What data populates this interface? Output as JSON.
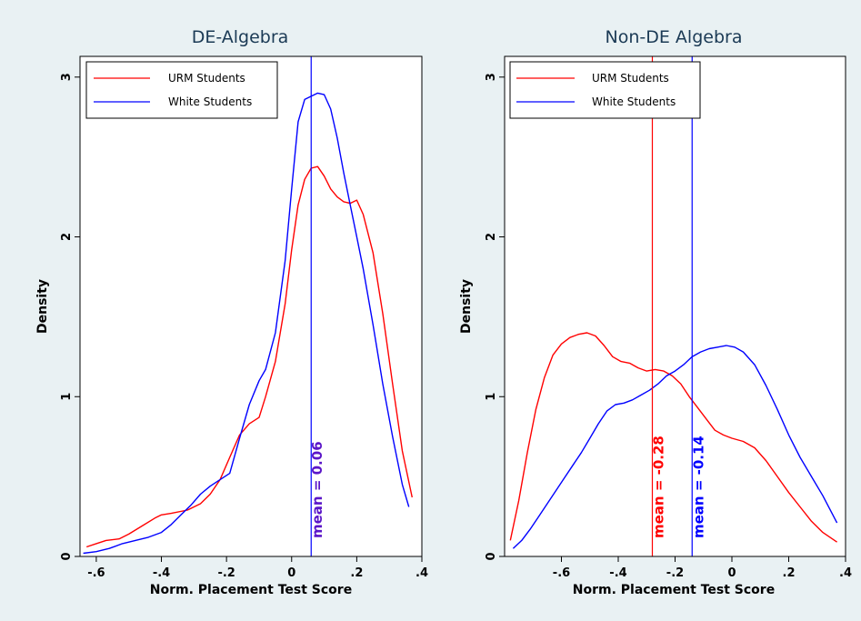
{
  "chart_data": [
    {
      "type": "line",
      "title": "DE-Algebra",
      "xlabel": "Norm. Placement Test Score",
      "ylabel": "Density",
      "xlim": [
        -0.65,
        0.4
      ],
      "ylim": [
        0,
        3.05
      ],
      "xticks": [
        -0.6,
        -0.4,
        -0.2,
        0,
        0.2,
        0.4
      ],
      "xtick_labels": [
        "-.6",
        "-.4",
        "-.2",
        "0",
        ".2",
        ".4"
      ],
      "yticks": [
        0,
        1,
        2,
        3
      ],
      "ytick_labels": [
        "0",
        "1",
        "2",
        "3"
      ],
      "grid": false,
      "legend_position": "top-left",
      "series": [
        {
          "name": "URM Students",
          "color": "#ff0000",
          "x": [
            -0.63,
            -0.6,
            -0.57,
            -0.53,
            -0.5,
            -0.46,
            -0.42,
            -0.4,
            -0.37,
            -0.32,
            -0.28,
            -0.25,
            -0.22,
            -0.19,
            -0.16,
            -0.13,
            -0.1,
            -0.08,
            -0.05,
            -0.02,
            0.0,
            0.02,
            0.04,
            0.06,
            0.08,
            0.1,
            0.12,
            0.14,
            0.16,
            0.18,
            0.2,
            0.22,
            0.25,
            0.28,
            0.31,
            0.34,
            0.37
          ],
          "y": [
            0.06,
            0.08,
            0.1,
            0.11,
            0.14,
            0.19,
            0.24,
            0.26,
            0.27,
            0.29,
            0.33,
            0.39,
            0.48,
            0.62,
            0.76,
            0.83,
            0.87,
            1.0,
            1.22,
            1.58,
            1.92,
            2.2,
            2.36,
            2.43,
            2.44,
            2.38,
            2.3,
            2.25,
            2.22,
            2.21,
            2.23,
            2.14,
            1.9,
            1.52,
            1.08,
            0.66,
            0.37
          ]
        },
        {
          "name": "White Students",
          "color": "#0000ff",
          "x": [
            -0.64,
            -0.6,
            -0.56,
            -0.52,
            -0.48,
            -0.44,
            -0.4,
            -0.37,
            -0.34,
            -0.31,
            -0.28,
            -0.25,
            -0.22,
            -0.19,
            -0.16,
            -0.13,
            -0.1,
            -0.08,
            -0.05,
            -0.02,
            0.0,
            0.02,
            0.04,
            0.06,
            0.08,
            0.1,
            0.12,
            0.14,
            0.16,
            0.18,
            0.2,
            0.22,
            0.25,
            0.28,
            0.31,
            0.34,
            0.36
          ],
          "y": [
            0.02,
            0.03,
            0.05,
            0.08,
            0.1,
            0.12,
            0.15,
            0.2,
            0.26,
            0.32,
            0.39,
            0.44,
            0.48,
            0.52,
            0.74,
            0.95,
            1.1,
            1.17,
            1.4,
            1.85,
            2.3,
            2.72,
            2.86,
            2.88,
            2.9,
            2.89,
            2.8,
            2.62,
            2.4,
            2.2,
            2.0,
            1.8,
            1.45,
            1.08,
            0.75,
            0.45,
            0.31
          ]
        }
      ],
      "mean_lines": [
        {
          "x": 0.06,
          "label": "mean = 0.06",
          "color": "#0000ff",
          "text_color": "#5b16c8"
        }
      ]
    },
    {
      "type": "line",
      "title": "Non-DE Algebra",
      "xlabel": "Norm. Placement Test Score",
      "ylabel": "Density",
      "xlim": [
        -0.8,
        0.4
      ],
      "ylim": [
        0,
        3.05
      ],
      "xticks": [
        -0.6,
        -0.4,
        -0.2,
        0,
        0.2,
        0.4
      ],
      "xtick_labels": [
        "-.6",
        "-.4",
        "-.2",
        "0",
        ".2",
        ".4"
      ],
      "yticks": [
        0,
        1,
        2,
        3
      ],
      "ytick_labels": [
        "0",
        "1",
        "2",
        "3"
      ],
      "grid": false,
      "legend_position": "top-left",
      "series": [
        {
          "name": "URM Students",
          "color": "#ff0000",
          "x": [
            -0.78,
            -0.75,
            -0.72,
            -0.69,
            -0.66,
            -0.63,
            -0.6,
            -0.57,
            -0.54,
            -0.51,
            -0.48,
            -0.45,
            -0.42,
            -0.39,
            -0.36,
            -0.33,
            -0.3,
            -0.27,
            -0.24,
            -0.21,
            -0.18,
            -0.15,
            -0.12,
            -0.09,
            -0.06,
            -0.03,
            0.0,
            0.04,
            0.08,
            0.12,
            0.16,
            0.2,
            0.24,
            0.28,
            0.32,
            0.37
          ],
          "y": [
            0.1,
            0.35,
            0.65,
            0.92,
            1.12,
            1.26,
            1.33,
            1.37,
            1.39,
            1.4,
            1.38,
            1.32,
            1.25,
            1.22,
            1.21,
            1.18,
            1.16,
            1.17,
            1.16,
            1.13,
            1.08,
            1.0,
            0.93,
            0.86,
            0.79,
            0.76,
            0.74,
            0.72,
            0.68,
            0.6,
            0.5,
            0.4,
            0.31,
            0.22,
            0.15,
            0.09
          ]
        },
        {
          "name": "White Students",
          "color": "#0000ff",
          "x": [
            -0.77,
            -0.74,
            -0.71,
            -0.68,
            -0.65,
            -0.62,
            -0.59,
            -0.56,
            -0.53,
            -0.5,
            -0.47,
            -0.44,
            -0.41,
            -0.38,
            -0.35,
            -0.32,
            -0.29,
            -0.26,
            -0.23,
            -0.2,
            -0.17,
            -0.14,
            -0.11,
            -0.08,
            -0.05,
            -0.02,
            0.01,
            0.04,
            0.08,
            0.12,
            0.16,
            0.2,
            0.24,
            0.28,
            0.32,
            0.37
          ],
          "y": [
            0.05,
            0.1,
            0.17,
            0.25,
            0.33,
            0.41,
            0.49,
            0.57,
            0.65,
            0.74,
            0.83,
            0.91,
            0.95,
            0.96,
            0.98,
            1.01,
            1.04,
            1.08,
            1.13,
            1.16,
            1.2,
            1.25,
            1.28,
            1.3,
            1.31,
            1.32,
            1.31,
            1.28,
            1.2,
            1.07,
            0.92,
            0.76,
            0.62,
            0.5,
            0.38,
            0.21
          ]
        }
      ],
      "mean_lines": [
        {
          "x": -0.28,
          "label": "mean = -0.28",
          "color": "#ff0000",
          "text_color": "#ff0000"
        },
        {
          "x": -0.14,
          "label": "mean = -0.14",
          "color": "#0000ff",
          "text_color": "#0000ff"
        }
      ]
    }
  ]
}
